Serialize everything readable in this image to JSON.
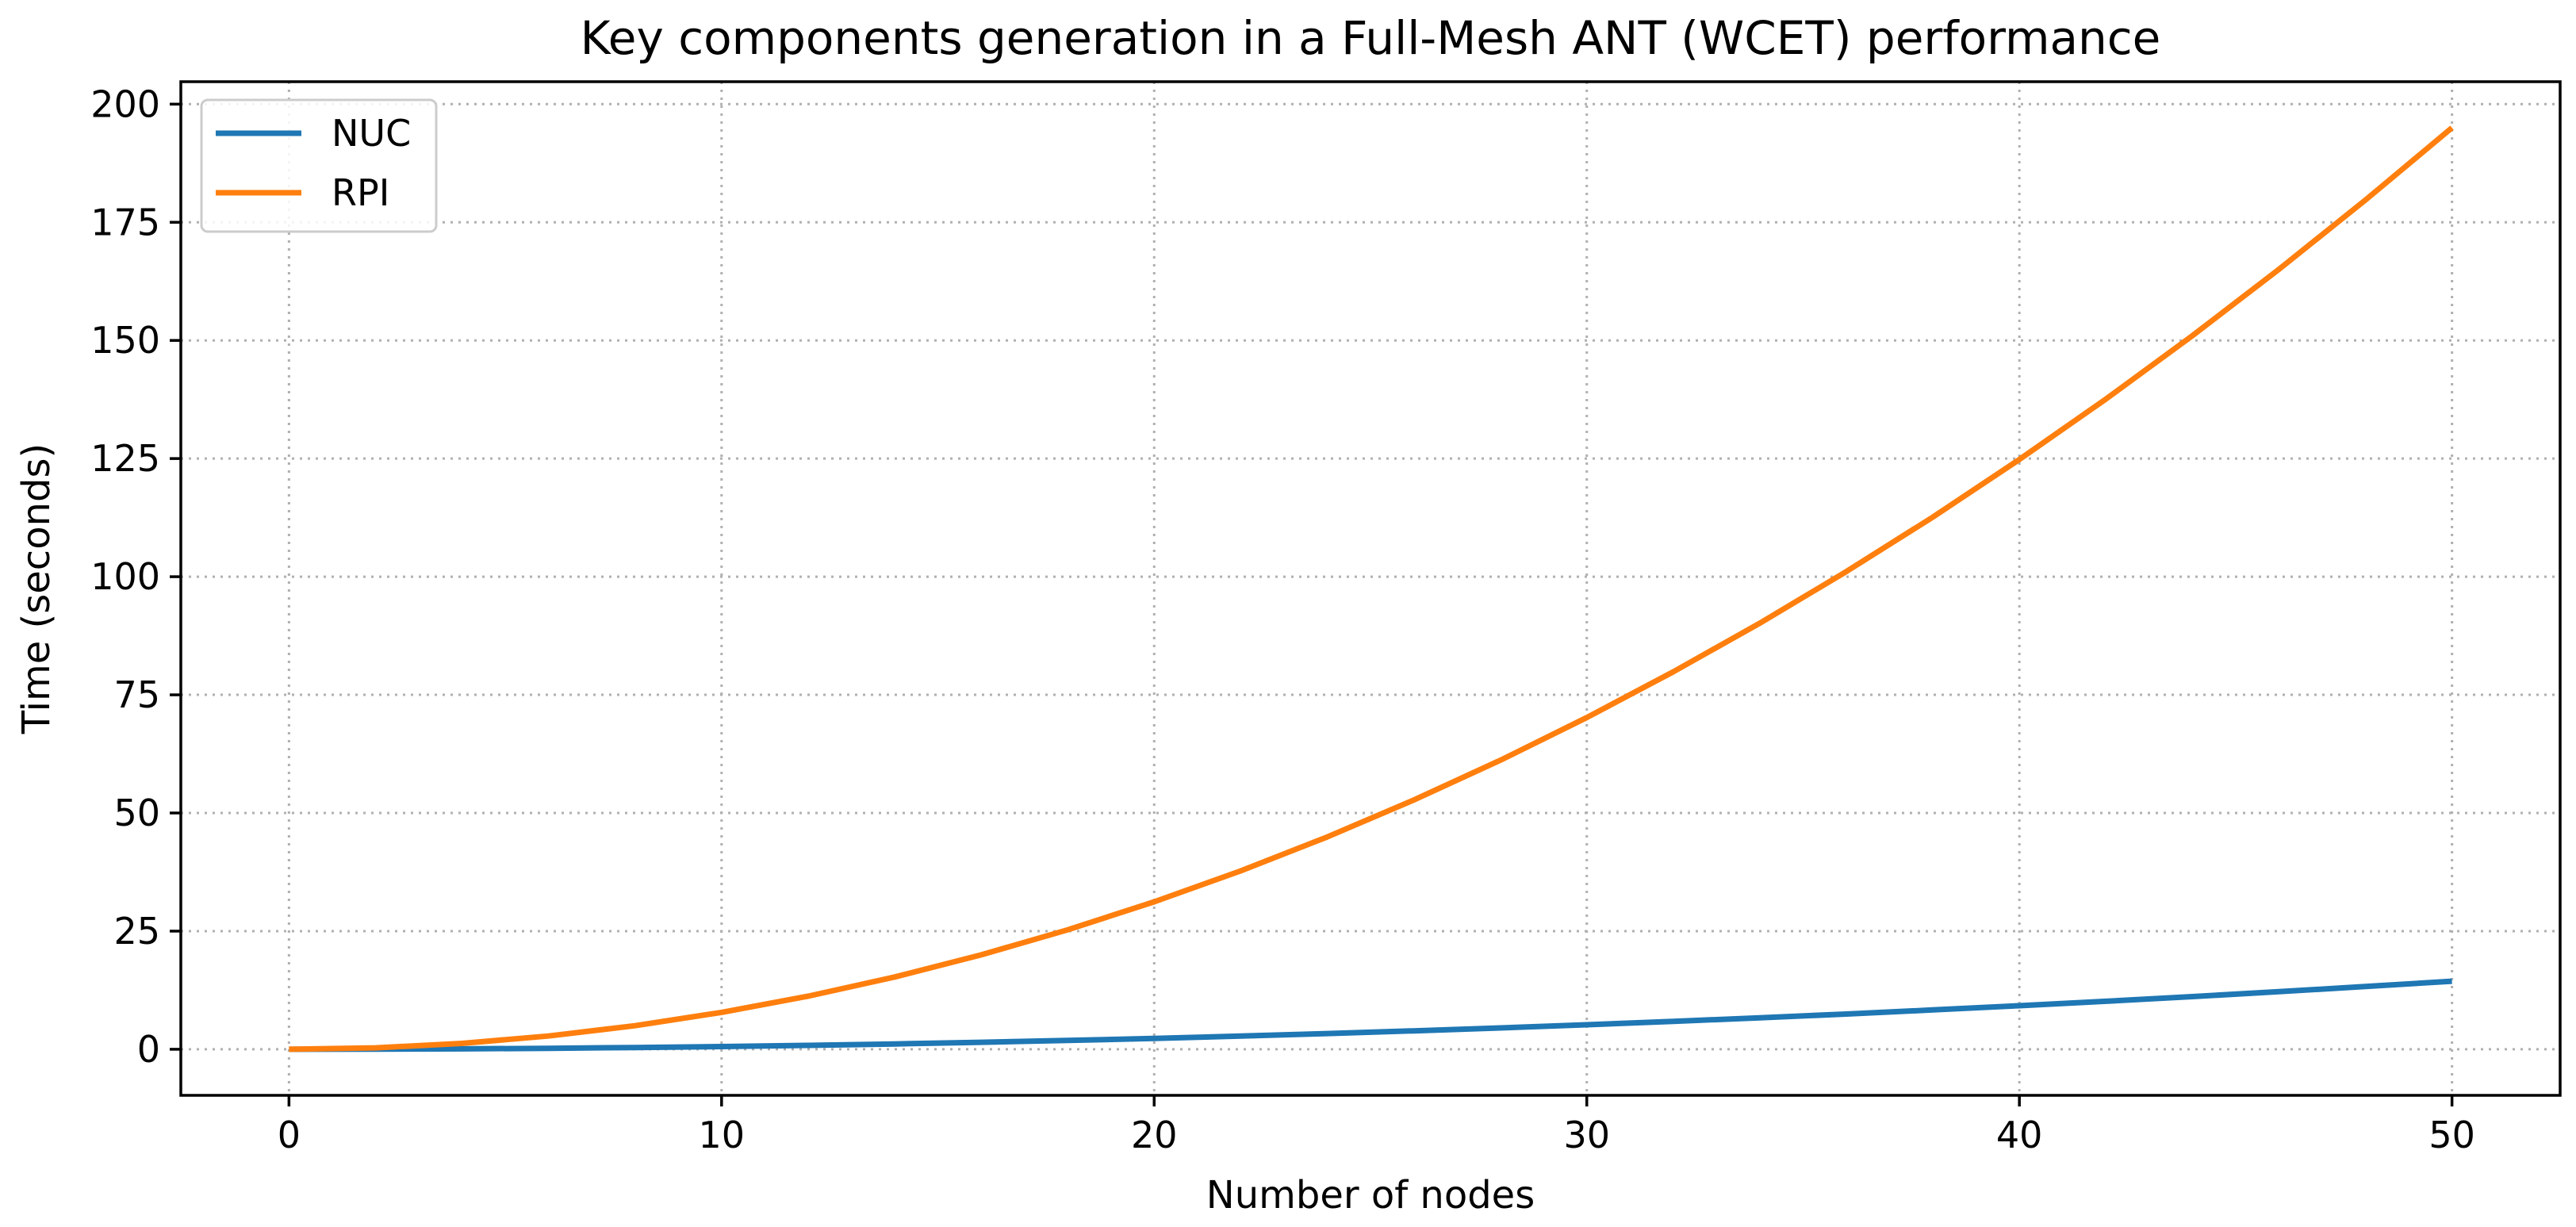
{
  "chart_data": {
    "type": "line",
    "title": "Key components generation in a Full-Mesh ANT (WCET) performance",
    "xlabel": "Number of nodes",
    "ylabel": "Time (seconds)",
    "xlim": [
      -2.5,
      52.5
    ],
    "ylim": [
      -9.75,
      204.75
    ],
    "xticks": [
      0,
      10,
      20,
      30,
      40,
      50
    ],
    "yticks": [
      0,
      25,
      50,
      75,
      100,
      125,
      150,
      175,
      200
    ],
    "grid": true,
    "legend_position": "upper-left",
    "x": [
      0,
      2,
      4,
      6,
      8,
      10,
      12,
      14,
      16,
      18,
      20,
      22,
      24,
      26,
      28,
      30,
      32,
      34,
      36,
      38,
      40,
      42,
      44,
      46,
      48,
      50
    ],
    "series": [
      {
        "name": "NUC",
        "color": "#1f77b4",
        "values": [
          0,
          0.02,
          0.09,
          0.21,
          0.37,
          0.58,
          0.83,
          1.13,
          1.48,
          1.87,
          2.3,
          2.79,
          3.32,
          3.89,
          4.51,
          5.18,
          5.9,
          6.66,
          7.46,
          8.32,
          9.22,
          10.16,
          11.15,
          12.19,
          13.27,
          14.4
        ]
      },
      {
        "name": "RPI",
        "color": "#ff7f0e",
        "values": [
          0,
          0.3,
          1.25,
          2.8,
          4.99,
          7.8,
          11.23,
          15.29,
          19.97,
          25.27,
          31.2,
          37.75,
          44.93,
          52.73,
          61.15,
          70.2,
          79.87,
          90.17,
          101.09,
          112.63,
          124.8,
          137.59,
          151.01,
          165.05,
          179.71,
          195.0
        ]
      }
    ]
  }
}
